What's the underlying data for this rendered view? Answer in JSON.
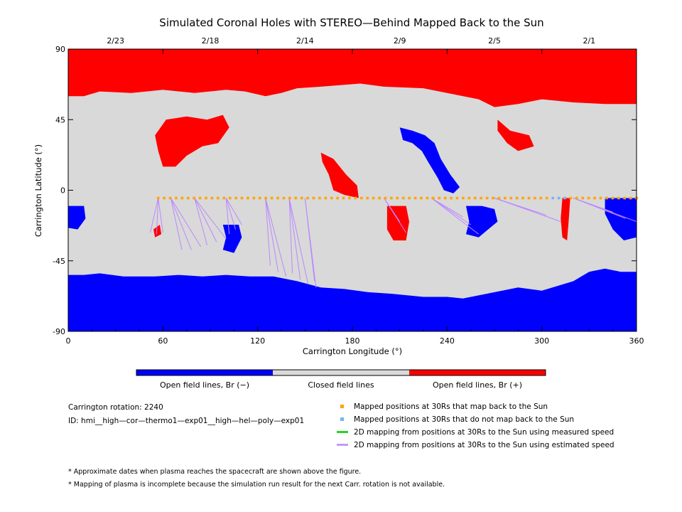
{
  "chart_data": {
    "type": "heatmap",
    "title": "Simulated Coronal Holes with STEREO—Behind Mapped Back to the Sun",
    "xlabel": "Carrington Longitude (°)",
    "ylabel": "Carrington Latitude (°)",
    "xlim": [
      0,
      360
    ],
    "ylim": [
      -90,
      90
    ],
    "x_ticks": [
      "0",
      "60",
      "120",
      "180",
      "240",
      "300",
      "360"
    ],
    "y_ticks": [
      "90",
      "45",
      "0",
      "-45",
      "-90"
    ],
    "top_axis": {
      "labels": [
        {
          "text": "2/23",
          "lon": 30
        },
        {
          "text": "2/18",
          "lon": 90
        },
        {
          "text": "2/14",
          "lon": 150
        },
        {
          "text": "2/9",
          "lon": 210
        },
        {
          "text": "2/5",
          "lon": 270
        },
        {
          "text": "2/1",
          "lon": 330
        }
      ]
    },
    "colors": {
      "open_negative": "#0000ff",
      "closed": "#d9d9d9",
      "open_positive": "#ff0000",
      "mapped_back": "#ffa500",
      "not_mapped": "#78b4f0",
      "measured_speed": "#00d000",
      "estimated_speed": "#bb88ff"
    },
    "colorbar": {
      "labels": [
        "Open field lines, Br (−)",
        "Closed field lines",
        "Open field lines, Br (+)"
      ]
    },
    "regions": {
      "north_polar_hole": {
        "polarity": "+",
        "lat_min": 55,
        "lat_max": 90
      },
      "south_polar_hole": {
        "polarity": "-",
        "lat_min": -90,
        "lat_max": -55
      },
      "low_latitude_holes": [
        {
          "polarity": "+",
          "lon": [
            55,
            100
          ],
          "lat": [
            15,
            45
          ]
        },
        {
          "polarity": "+",
          "lon": [
            160,
            185
          ],
          "lat": [
            -5,
            25
          ]
        },
        {
          "polarity": "+",
          "lon": [
            202,
            216
          ],
          "lat": [
            -32,
            -10
          ]
        },
        {
          "polarity": "+",
          "lon": [
            272,
            295
          ],
          "lat": [
            20,
            45
          ]
        },
        {
          "polarity": "+",
          "lon": [
            313,
            318
          ],
          "lat": [
            -32,
            -5
          ]
        },
        {
          "polarity": "-",
          "lon": [
            98,
            110
          ],
          "lat": [
            -40,
            -22
          ]
        },
        {
          "polarity": "-",
          "lon": [
            210,
            250
          ],
          "lat": [
            0,
            40
          ]
        },
        {
          "polarity": "-",
          "lon": [
            252,
            272
          ],
          "lat": [
            -30,
            -10
          ]
        },
        {
          "polarity": "-",
          "lon": [
            340,
            360
          ],
          "lat": [
            -30,
            -5
          ]
        },
        {
          "polarity": "-",
          "lon": [
            0,
            10
          ],
          "lat": [
            -25,
            -10
          ]
        }
      ]
    },
    "mapped_points": {
      "lat": -5,
      "lon_start": 57,
      "lon_end": 360,
      "count": 81,
      "not_mapped_lon_range": [
        306,
        316
      ]
    },
    "mapping_lines": [
      {
        "from_lon": 57,
        "to": [
          [
            52,
            -27
          ],
          [
            56,
            -28
          ],
          [
            60,
            -27
          ]
        ]
      },
      {
        "from_lon": 65,
        "to": [
          [
            72,
            -38
          ],
          [
            78,
            -38
          ],
          [
            84,
            -36
          ]
        ]
      },
      {
        "from_lon": 80,
        "to": [
          [
            88,
            -35
          ],
          [
            94,
            -33
          ],
          [
            100,
            -31
          ]
        ]
      },
      {
        "from_lon": 100,
        "to": [
          [
            102,
            -28
          ],
          [
            106,
            -25
          ],
          [
            110,
            -22
          ]
        ]
      },
      {
        "from_lon": 125,
        "to": [
          [
            128,
            -48
          ],
          [
            133,
            -52
          ],
          [
            138,
            -55
          ]
        ]
      },
      {
        "from_lon": 140,
        "to": [
          [
            142,
            -53
          ],
          [
            147,
            -57
          ],
          [
            152,
            -60
          ]
        ]
      },
      {
        "from_lon": 150,
        "to": [
          [
            156,
            -58
          ],
          [
            157,
            -62
          ]
        ]
      },
      {
        "from_lon": 200,
        "to": [
          [
            206,
            -14
          ],
          [
            210,
            -20
          ],
          [
            214,
            -27
          ]
        ]
      },
      {
        "from_lon": 230,
        "to": [
          [
            250,
            -17
          ],
          [
            255,
            -22
          ],
          [
            260,
            -28
          ]
        ]
      },
      {
        "from_lon": 270,
        "to": [
          [
            297,
            -14
          ],
          [
            303,
            -16
          ],
          [
            312,
            -20
          ]
        ]
      },
      {
        "from_lon": 320,
        "to": [
          [
            345,
            -14
          ],
          [
            353,
            -18
          ],
          [
            360,
            -20
          ]
        ]
      }
    ],
    "legend": [
      {
        "kind": "square",
        "color": "mapped_back",
        "text": "Mapped positions at 30Rs that map back to the Sun"
      },
      {
        "kind": "square",
        "color": "not_mapped",
        "text": "Mapped positions at 30Rs that do not map back to the Sun"
      },
      {
        "kind": "line",
        "color": "measured_speed",
        "text": "2D mapping from positions at 30Rs to the Sun using measured speed"
      },
      {
        "kind": "line",
        "color": "estimated_speed",
        "text": "2D mapping from positions at 30Rs to the Sun using estimated speed"
      }
    ],
    "info": {
      "rotation": "Carrington rotation: 2240",
      "id": "ID: hmi__high—cor—thermo1—exp01__high—hel—poly—exp01"
    },
    "footnotes": [
      "* Approximate dates when plasma reaches the spacecraft are shown above the figure.",
      "* Mapping of plasma is incomplete because the simulation run result for the next Carr. rotation is not available."
    ]
  }
}
